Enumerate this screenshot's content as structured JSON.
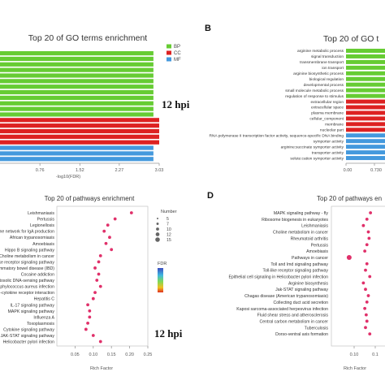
{
  "panels": {
    "b_letter": "B",
    "d_letter": "D",
    "hpi_top": "12 hpi",
    "hpi_bottom": "12 hpi"
  },
  "colors": {
    "BP": "#66cc33",
    "CC": "#dd2222",
    "MF": "#4499dd",
    "dot": "#e0306a"
  },
  "chart_data": [
    {
      "panel": "A",
      "type": "bar",
      "orientation": "horizontal",
      "title": "Top 20 of GO terms enrichment",
      "xlabel": "-log10(FDR)",
      "xticks": [
        "0.76",
        "1.52",
        "2.27",
        "3.03"
      ],
      "xlim": [
        0,
        3.03
      ],
      "legend": {
        "placement": "top-right",
        "entries": [
          "BP",
          "CC",
          "MF"
        ]
      },
      "series": [
        {
          "name": "BP",
          "values": [
            2.92,
            2.92,
            2.92,
            2.92,
            2.92,
            2.92,
            2.92,
            2.92,
            2.92,
            2.92,
            2.92,
            2.92
          ]
        },
        {
          "name": "CC",
          "values": [
            3.03,
            3.03,
            3.03,
            3.03,
            3.03
          ]
        },
        {
          "name": "MF",
          "values": [
            2.92,
            2.92,
            2.92
          ]
        }
      ]
    },
    {
      "panel": "B",
      "type": "bar",
      "orientation": "horizontal",
      "title": "Top 20 of GO t",
      "xticks": [
        "0.00",
        "0.730"
      ],
      "xlim": [
        0,
        1.46
      ],
      "categories": [
        "arginine metabolic process",
        "signal transduction",
        "transmembrane transport",
        "ion transport",
        "arginine biosynthetic process",
        "biological regulation",
        "developmental process",
        "small molecule metabolic process",
        "regulation of response to stimulus",
        "extracellular region",
        "extracellular space",
        "plasma membrane",
        "cellular_component",
        "membrane",
        "nucleolar part",
        "RNA polymerase II transcription factor activity, sequence-specific DNA binding",
        "symporter activity",
        "arginine:succinate symporter activity",
        "transporter activity",
        "solute:cation symporter activity"
      ],
      "groups": [
        "BP",
        "BP",
        "BP",
        "BP",
        "BP",
        "BP",
        "BP",
        "BP",
        "BP",
        "CC",
        "CC",
        "CC",
        "CC",
        "CC",
        "CC",
        "MF",
        "MF",
        "MF",
        "MF",
        "MF"
      ],
      "values": [
        1.5,
        1.5,
        1.5,
        1.5,
        1.5,
        1.5,
        1.5,
        1.5,
        1.5,
        1.5,
        1.5,
        1.5,
        1.5,
        1.5,
        1.5,
        1.5,
        1.5,
        1.5,
        1.5,
        1.5
      ]
    },
    {
      "panel": "C",
      "type": "scatter",
      "title": "Top 20 of pathways enrichment",
      "xlabel": "Rich Factor",
      "xticks": [
        "0.05",
        "0.10",
        "0.15",
        "0.20",
        "0.25"
      ],
      "xlim": [
        0.0,
        0.25
      ],
      "categories": [
        "Leishmaniasis",
        "Pertussis",
        "Legionellosis",
        "Intestinal immune network for IgA production",
        "African trypanosomiasis",
        "Amoebiasis",
        "Hippo B signaling pathway",
        "Choline metabolism in cancer",
        "Toll-like receptor signaling pathway",
        "Inflammatory bowel disease (IBD)",
        "Cocaine addiction",
        "Cytosolic DNA-sensing pathway",
        "Staphylococcus aureus infection",
        "Cytokine-cytokine receptor interaction",
        "Hepatitis C",
        "IL-17 signaling pathway",
        "MAPK signaling pathway",
        "Influenza A",
        "Toxoplasmosis",
        "Cytokine signaling pathway",
        "JAK-STAT signaling pathway",
        "Helicobacter pylori infection"
      ],
      "x": [
        0.205,
        0.16,
        0.14,
        0.13,
        0.145,
        0.135,
        0.15,
        0.12,
        0.115,
        0.105,
        0.115,
        0.11,
        0.12,
        0.105,
        0.1,
        0.085,
        0.09,
        0.09,
        0.085,
        0.08,
        0.1,
        0.12
      ],
      "legend_number": {
        "title": "Number",
        "entries": [
          "5",
          "7",
          "10",
          "12",
          "15"
        ]
      },
      "legend_fdr": {
        "title": "FDR"
      }
    },
    {
      "panel": "D",
      "type": "scatter",
      "title": "Top 20 of pathways en",
      "xlabel": "Rich Factor",
      "xticks": [
        "0.10",
        "0.1"
      ],
      "categories": [
        "MAPK signaling pathway - fly",
        "Ribosome biogenesis in eukaryotes",
        "Leishmaniasis",
        "Choline metabolism in cancer",
        "Rheumatoid arthritis",
        "Pertussis",
        "Amoebiasis",
        "Pathways in cancer",
        "Toll and Imd signaling pathway",
        "Toll-like receptor signaling pathway",
        "Epithelial cell signaling in Helicobacter pylori infection",
        "Arginine biosynthesis",
        "Jak-STAT signaling pathway",
        "Chagas disease (American trypanosomiasis)",
        "Collecting duct acid secretion",
        "Kaposi sarcoma-associated herpesvirus infection",
        "Fluid shear stress and atherosclerosis",
        "Central carbon metabolism in cancer",
        "Tuberculosis",
        "Dorso-ventral axis formation"
      ],
      "x": [
        0.115,
        0.11,
        0.105,
        0.112,
        0.113,
        0.11,
        0.107,
        0.085,
        0.11,
        0.108,
        0.114,
        0.105,
        0.108,
        0.112,
        0.11,
        0.107,
        0.109,
        0.11,
        0.108,
        0.114
      ]
    }
  ]
}
